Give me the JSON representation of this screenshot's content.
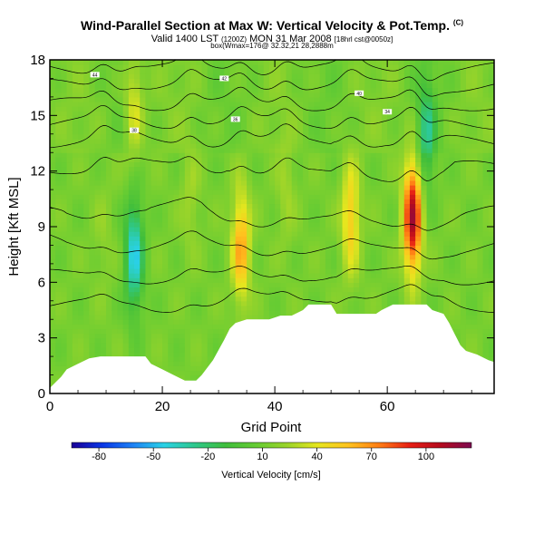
{
  "header": {
    "title": "Wind-Parallel Section at Max W: Vertical Velocity & Pot.Temp.",
    "title_mark": "(C)",
    "valid_line": "Valid 1400 LST",
    "valid_small1": "(1200Z)",
    "valid_mid": "MON 31 Mar 2008",
    "valid_small2": "[18hrl cst@0050z]",
    "box_line": "box(Wmax=176@ 32.32,21 28,2888m"
  },
  "chart_data": {
    "type": "heatmap",
    "xlabel": "Grid Point",
    "ylabel": "Height [Kft MSL]",
    "xlim": [
      0,
      79
    ],
    "ylim": [
      0,
      18
    ],
    "x_ticks": [
      "0",
      "20",
      "40",
      "60"
    ],
    "y_ticks": [
      "0",
      "3",
      "6",
      "9",
      "12",
      "15",
      "18"
    ],
    "colorbar": {
      "label": "Vertical Velocity [cm/s]",
      "ticks": [
        "-80",
        "-50",
        "-20",
        "10",
        "40",
        "70",
        "100"
      ],
      "range": [
        -95,
        125
      ],
      "colors": [
        "#1a0096",
        "#0a37e6",
        "#1e82f5",
        "#2ad2e6",
        "#2ec88c",
        "#3fbe3c",
        "#66cc33",
        "#9ad42a",
        "#e6e61e",
        "#ffc31e",
        "#ff7d14",
        "#e61e14",
        "#b40a1e",
        "#7d0a50"
      ]
    },
    "updrafts": [
      {
        "x": 9.5,
        "z": 8.5,
        "w": 20
      },
      {
        "x": 15,
        "z": 15.5,
        "w": 40
      },
      {
        "x": 25,
        "z": 10.5,
        "w": 25
      },
      {
        "x": 34,
        "z": 8,
        "w": 65
      },
      {
        "x": 42,
        "z": 11,
        "w": 25
      },
      {
        "x": 53.5,
        "z": 9.5,
        "w": 55
      },
      {
        "x": 64.5,
        "z": 9.5,
        "w": 110
      }
    ],
    "downdrafts": [
      {
        "x": 15,
        "z": 7.5,
        "w": -45
      },
      {
        "x": 67,
        "z": 14,
        "w": -25
      }
    ],
    "terrain": [
      [
        0,
        0.3
      ],
      [
        1,
        0.6
      ],
      [
        2,
        0.9
      ],
      [
        3,
        1.3
      ],
      [
        5,
        1.6
      ],
      [
        7,
        1.9
      ],
      [
        9,
        2.0
      ],
      [
        17,
        2.0
      ],
      [
        18,
        1.6
      ],
      [
        20,
        1.3
      ],
      [
        22,
        1.0
      ],
      [
        24,
        0.7
      ],
      [
        26,
        0.7
      ],
      [
        27,
        1.0
      ],
      [
        29,
        1.8
      ],
      [
        31,
        2.9
      ],
      [
        32,
        3.5
      ],
      [
        33,
        3.8
      ],
      [
        35,
        4.0
      ],
      [
        39,
        4.0
      ],
      [
        41,
        4.2
      ],
      [
        43,
        4.2
      ],
      [
        45,
        4.5
      ],
      [
        46,
        4.8
      ],
      [
        50,
        4.8
      ],
      [
        51,
        4.3
      ],
      [
        58,
        4.3
      ],
      [
        59,
        4.5
      ],
      [
        61,
        4.8
      ],
      [
        67,
        4.8
      ],
      [
        68,
        4.5
      ],
      [
        70,
        4.3
      ],
      [
        71,
        3.8
      ],
      [
        72,
        3.2
      ],
      [
        73,
        2.6
      ],
      [
        74,
        2.3
      ],
      [
        76,
        2.1
      ],
      [
        78,
        1.8
      ],
      [
        79,
        1.7
      ]
    ],
    "theta_labels": [
      "44",
      "42",
      "40",
      "38",
      "36",
      "34"
    ]
  }
}
